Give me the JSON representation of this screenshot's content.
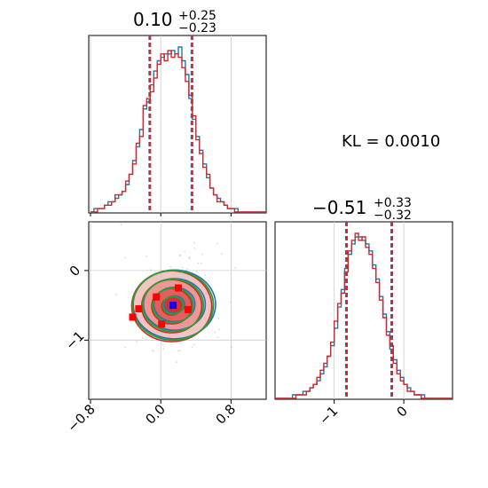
{
  "chart_data": {
    "type": "corner",
    "annotation": "KL = 0.0010",
    "colors": {
      "series_a": "#1f77b4",
      "series_b": "#d62728",
      "contour_green": "#2ca02c",
      "marker_blue": "#0000ff",
      "marker_red": "#ff0000",
      "grid": "#cccccc"
    },
    "param1": {
      "title_value": "0.10",
      "title_plus": "+0.25",
      "title_minus": "−0.23",
      "xlim": [
        -0.82,
        1.2
      ],
      "quantiles": [
        -0.13,
        0.1,
        0.35
      ],
      "bin_start": -0.8,
      "bin_width": 0.04,
      "hist_a": [
        0,
        1,
        1,
        1,
        2,
        3,
        3,
        4,
        5,
        6,
        8,
        11,
        15,
        19,
        24,
        30,
        32,
        37,
        41,
        44,
        45,
        46,
        46,
        47,
        46,
        48,
        44,
        40,
        33,
        27,
        22,
        18,
        14,
        10,
        7,
        5,
        4,
        3,
        2,
        1,
        1,
        1,
        0,
        0,
        0,
        0,
        0,
        0,
        0,
        0
      ],
      "hist_b": [
        0,
        0,
        1,
        1,
        2,
        2,
        3,
        5,
        5,
        6,
        9,
        11,
        14,
        20,
        22,
        31,
        33,
        35,
        39,
        43,
        46,
        44,
        47,
        45,
        46,
        45,
        42,
        38,
        34,
        28,
        21,
        17,
        13,
        11,
        7,
        5,
        3,
        3,
        2,
        1,
        1,
        0,
        0,
        0,
        0,
        0,
        0,
        0,
        0,
        0
      ]
    },
    "param2": {
      "title_value": "−0.51",
      "title_plus": "+0.33",
      "title_minus": "−0.32",
      "xlim": [
        -1.85,
        0.7
      ],
      "quantiles": [
        -0.83,
        -0.51,
        -0.18
      ],
      "bin_start": -1.85,
      "bin_width": 0.05,
      "hist_a": [
        0,
        0,
        0,
        0,
        0,
        1,
        1,
        1,
        2,
        2,
        3,
        4,
        5,
        7,
        9,
        12,
        15,
        20,
        26,
        31,
        37,
        41,
        44,
        46,
        46,
        45,
        44,
        42,
        38,
        34,
        29,
        24,
        19,
        14,
        11,
        8,
        6,
        4,
        3,
        2,
        1,
        1,
        1,
        0,
        0,
        0,
        0,
        0,
        0,
        0,
        0
      ],
      "hist_b": [
        0,
        0,
        0,
        0,
        0,
        0,
        1,
        1,
        1,
        2,
        3,
        4,
        6,
        8,
        10,
        12,
        16,
        22,
        27,
        30,
        36,
        42,
        45,
        47,
        45,
        46,
        43,
        41,
        37,
        33,
        28,
        23,
        18,
        15,
        10,
        7,
        5,
        4,
        2,
        2,
        1,
        1,
        0,
        0,
        0,
        0,
        0,
        0,
        0,
        0,
        0
      ]
    },
    "scatter2d": {
      "xlim": [
        -0.82,
        1.2
      ],
      "ylim": [
        -1.85,
        0.7
      ],
      "center": [
        0.14,
        -0.5
      ],
      "levels_sigma": [
        0.5,
        1.0,
        1.5,
        2.0
      ],
      "sigma_x": 0.23,
      "sigma_y": 0.32,
      "red_markers": [
        [
          0.2,
          -0.25
        ],
        [
          -0.05,
          -0.38
        ],
        [
          -0.25,
          -0.55
        ],
        [
          -0.32,
          -0.67
        ],
        [
          0.31,
          -0.56
        ],
        [
          0.01,
          -0.77
        ]
      ],
      "blue_marker": [
        0.14,
        -0.5
      ]
    },
    "axis_ticks": {
      "param1_ticks": [
        -0.8,
        0.0,
        0.8
      ],
      "param1_tick_labels": [
        "−0.8",
        "0.0",
        "0.8"
      ],
      "param2_ticks": [
        -1,
        0
      ],
      "param2_tick_labels": [
        "−1",
        "0"
      ]
    }
  }
}
